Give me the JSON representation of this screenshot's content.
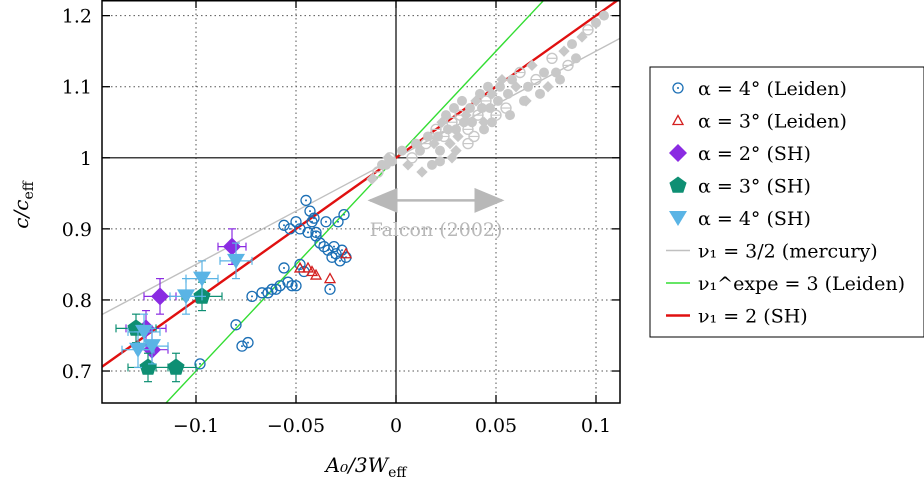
{
  "chart_data": {
    "type": "scatter",
    "xlabel": "A₀/3W",
    "xlabel_sub": "eff",
    "ylabel": "c/c",
    "ylabel_sub": "eff",
    "xlim": [
      -0.147,
      0.112
    ],
    "ylim": [
      0.655,
      1.222
    ],
    "x_ticks": [
      {
        "value": -0.1,
        "label": "−0.1"
      },
      {
        "value": -0.05,
        "label": "−0.05"
      },
      {
        "value": 0,
        "label": "0"
      },
      {
        "value": 0.05,
        "label": "0.05"
      },
      {
        "value": 0.1,
        "label": "0.1"
      }
    ],
    "y_ticks": [
      {
        "value": 0.7,
        "label": "0.7"
      },
      {
        "value": 0.8,
        "label": "0.8"
      },
      {
        "value": 0.9,
        "label": "0.9"
      },
      {
        "value": 1.0,
        "label": "1"
      },
      {
        "value": 1.1,
        "label": "1.1"
      },
      {
        "value": 1.2,
        "label": "1.2"
      }
    ],
    "grid": true,
    "legend_position": "right-outside",
    "annotation": {
      "text": "Falcon (2002)",
      "arrow_x": [
        -0.013,
        0.053
      ],
      "y": 0.94,
      "text_x": 0.02,
      "text_y": 0.9
    },
    "background_data": {
      "name": "Falcon (2002)",
      "color": "#c8c8c8",
      "x": [
        -0.012,
        -0.009,
        -0.007,
        -0.005,
        -0.004,
        -0.003,
        -0.002,
        0.003,
        0.006,
        0.008,
        0.01,
        0.012,
        0.013,
        0.015,
        0.016,
        0.018,
        0.019,
        0.02,
        0.021,
        0.022,
        0.023,
        0.024,
        0.025,
        0.026,
        0.027,
        0.028,
        0.029,
        0.03,
        0.031,
        0.032,
        0.033,
        0.034,
        0.035,
        0.036,
        0.037,
        0.038,
        0.04,
        0.041,
        0.042,
        0.043,
        0.044,
        0.045,
        0.046,
        0.047,
        0.048,
        0.05,
        0.051,
        0.052,
        0.053,
        0.055,
        0.056,
        0.058,
        0.06,
        0.062,
        0.064,
        0.066,
        0.068,
        0.07,
        0.072,
        0.074,
        0.076,
        0.078,
        0.08,
        0.082,
        0.084,
        0.086,
        0.088,
        0.09,
        0.093,
        0.096,
        0.1,
        0.104,
        0.028,
        0.036,
        0.044,
        0.022,
        0.03,
        0.039,
        0.048,
        0.057,
        0.065
      ],
      "y": [
        0.97,
        0.98,
        0.99,
        0.99,
        1.0,
        1.0,
        0.995,
        1.01,
        0.99,
        1.0,
        1.02,
        1.01,
        0.98,
        1.02,
        1.03,
        0.99,
        1.02,
        1.04,
        1.03,
        1.01,
        1.05,
        1.03,
        1.06,
        1.04,
        1.02,
        1.05,
        1.07,
        1.04,
        1.03,
        1.06,
        1.08,
        1.05,
        1.06,
        1.04,
        1.07,
        1.05,
        1.08,
        1.06,
        1.09,
        1.07,
        1.05,
        1.08,
        1.1,
        1.07,
        1.09,
        1.06,
        1.08,
        1.1,
        1.11,
        1.07,
        1.09,
        1.11,
        1.1,
        1.12,
        1.08,
        1.1,
        1.13,
        1.11,
        1.09,
        1.12,
        1.1,
        1.14,
        1.12,
        1.11,
        1.15,
        1.13,
        1.16,
        1.14,
        1.17,
        1.18,
        1.19,
        1.2,
        1.0,
        1.02,
        1.04,
        0.995,
        1.01,
        1.03,
        1.05,
        1.06,
        1.08
      ]
    },
    "series": [
      {
        "name": "α = 4° (Leiden)",
        "marker": "circle-dot",
        "color": "#1b6fb5",
        "x": [
          -0.098,
          -0.08,
          -0.077,
          -0.074,
          -0.072,
          -0.067,
          -0.064,
          -0.062,
          -0.06,
          -0.058,
          -0.056,
          -0.054,
          -0.052,
          -0.05,
          -0.048,
          -0.046,
          -0.044,
          -0.042,
          -0.04,
          -0.038,
          -0.036,
          -0.034,
          -0.032,
          -0.03,
          -0.028,
          -0.026,
          -0.056,
          -0.053,
          -0.05,
          -0.048,
          -0.045,
          -0.043,
          -0.041,
          -0.033,
          -0.031,
          -0.029,
          -0.027,
          -0.025,
          -0.035,
          -0.04
        ],
        "y": [
          0.71,
          0.765,
          0.735,
          0.74,
          0.805,
          0.81,
          0.81,
          0.815,
          0.815,
          0.82,
          0.845,
          0.825,
          0.82,
          0.82,
          0.85,
          0.84,
          0.895,
          0.91,
          0.895,
          0.88,
          0.875,
          0.87,
          0.86,
          0.865,
          0.855,
          0.92,
          0.905,
          0.9,
          0.91,
          0.9,
          0.94,
          0.925,
          0.915,
          0.815,
          0.875,
          0.91,
          0.87,
          0.86,
          0.91,
          0.89
        ]
      },
      {
        "name": "α = 3° (Leiden)",
        "marker": "triangle-up-open",
        "color": "#d42020",
        "x": [
          -0.048,
          -0.044,
          -0.042,
          -0.04,
          -0.033,
          -0.025
        ],
        "y": [
          0.845,
          0.845,
          0.84,
          0.835,
          0.83,
          0.865
        ]
      },
      {
        "name": "α = 2° (SH)",
        "marker": "diamond",
        "color": "#8a2be2",
        "x": [
          -0.118,
          -0.122,
          -0.125,
          -0.082
        ],
        "y": [
          0.805,
          0.73,
          0.76,
          0.875
        ],
        "xerr": [
          0.008,
          0.008,
          0.01,
          0.007
        ],
        "yerr": [
          0.025,
          0.025,
          0.025,
          0.025
        ]
      },
      {
        "name": "α = 3° (SH)",
        "marker": "pentagon",
        "color": "#0e8f73",
        "x": [
          -0.13,
          -0.124,
          -0.11,
          -0.097
        ],
        "y": [
          0.76,
          0.705,
          0.705,
          0.805
        ],
        "xerr": [
          0.01,
          0.01,
          0.01,
          0.01
        ],
        "yerr": [
          0.02,
          0.02,
          0.02,
          0.02
        ]
      },
      {
        "name": "α = 4° (SH)",
        "marker": "triangle-down",
        "color": "#5ab4e5",
        "x": [
          -0.129,
          -0.126,
          -0.105,
          -0.097,
          -0.08,
          -0.122
        ],
        "y": [
          0.73,
          0.755,
          0.805,
          0.83,
          0.855,
          0.735
        ],
        "xerr": [
          0.008,
          0.008,
          0.008,
          0.008,
          0.008,
          0.008
        ],
        "yerr": [
          0.025,
          0.025,
          0.025,
          0.025,
          0.025,
          0.025
        ]
      }
    ],
    "lines": [
      {
        "name": "ν₁ = 3/2 (mercury)",
        "slope": 1.5,
        "color": "#c0c0c0",
        "width": 1.4
      },
      {
        "name": "ν₁^expe = 3 (Leiden)",
        "slope": 3,
        "color": "#33dd33",
        "width": 1.4
      },
      {
        "name": "ν₁ = 2 (SH)",
        "slope": 2,
        "color": "#e01010",
        "width": 2.4
      }
    ]
  }
}
